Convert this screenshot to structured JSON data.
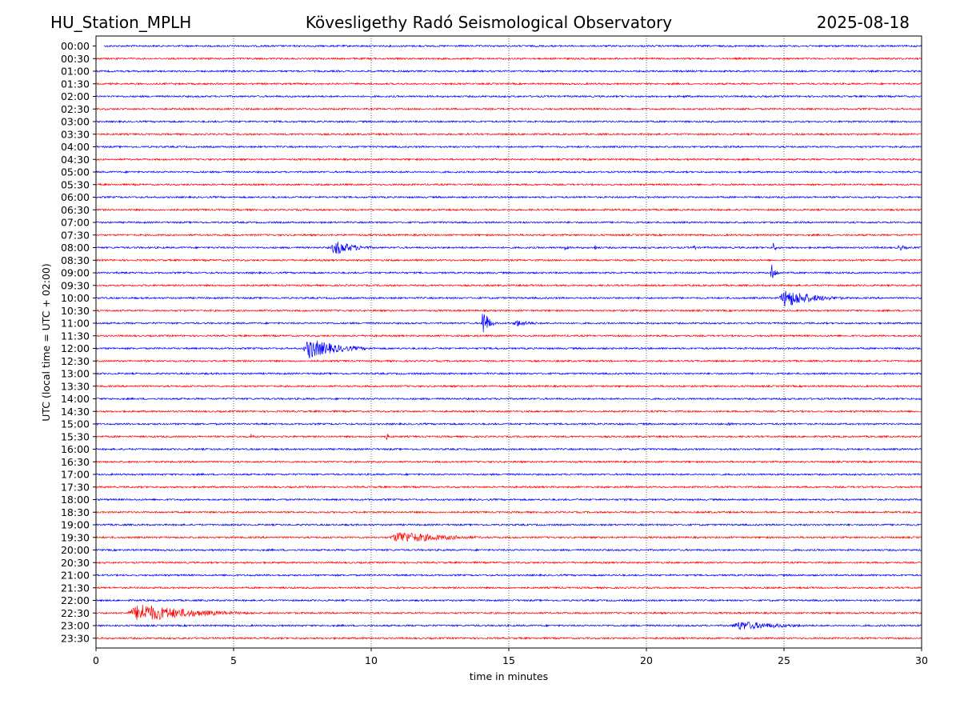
{
  "header": {
    "station": "HU_Station_MPLH",
    "observatory": "Kövesligethy Radó Seismological Observatory",
    "date": "2025-08-18"
  },
  "chart_data": {
    "type": "line",
    "title": "Kövesligethy Radó Seismological Observatory",
    "xlabel": "time in minutes",
    "ylabel": "UTC (local time = UTC + 02:00)",
    "xlim": [
      0,
      30
    ],
    "x_ticks": [
      "0",
      "5",
      "10",
      "15",
      "20",
      "25",
      "30"
    ],
    "x_tick_values": [
      0,
      5,
      10,
      15,
      20,
      25,
      30
    ],
    "grid": "vertical dotted lines at x ticks",
    "trace_colors": [
      "#0000ff",
      "#ff0000"
    ],
    "row_labels": [
      "00:00",
      "00:30",
      "01:00",
      "01:30",
      "02:00",
      "02:30",
      "03:00",
      "03:30",
      "04:00",
      "04:30",
      "05:00",
      "05:30",
      "06:00",
      "06:30",
      "07:00",
      "07:30",
      "08:00",
      "08:30",
      "09:00",
      "09:30",
      "10:00",
      "10:30",
      "11:00",
      "11:30",
      "12:00",
      "12:30",
      "13:00",
      "13:30",
      "14:00",
      "14:30",
      "15:00",
      "15:30",
      "16:00",
      "16:30",
      "17:00",
      "17:30",
      "18:00",
      "18:30",
      "19:00",
      "19:30",
      "20:00",
      "20:30",
      "21:00",
      "21:30",
      "22:00",
      "22:30",
      "23:00",
      "23:30"
    ],
    "events": [
      {
        "row": "02:00",
        "start": 21.3,
        "duration": 0.9,
        "amplitude": 0.35
      },
      {
        "row": "03:00",
        "start": 4.6,
        "duration": 0.8,
        "amplitude": 0.15
      },
      {
        "row": "03:30",
        "start": 12.9,
        "duration": 0.3,
        "amplitude": 0.2
      },
      {
        "row": "08:00",
        "start": 8.5,
        "duration": 2.3,
        "amplitude": 1.6
      },
      {
        "row": "08:00",
        "start": 17.0,
        "duration": 0.4,
        "amplitude": 0.8
      },
      {
        "row": "08:00",
        "start": 18.1,
        "duration": 0.3,
        "amplitude": 0.75
      },
      {
        "row": "08:00",
        "start": 21.7,
        "duration": 0.3,
        "amplitude": 0.75
      },
      {
        "row": "08:00",
        "start": 24.6,
        "duration": 0.2,
        "amplitude": 1.8
      },
      {
        "row": "08:00",
        "start": 29.1,
        "duration": 0.9,
        "amplitude": 0.7
      },
      {
        "row": "09:00",
        "start": 24.5,
        "duration": 0.5,
        "amplitude": 2.0
      },
      {
        "row": "10:00",
        "start": 24.8,
        "duration": 3.2,
        "amplitude": 2.0
      },
      {
        "row": "11:00",
        "start": 14.0,
        "duration": 0.6,
        "amplitude": 3.8
      },
      {
        "row": "11:00",
        "start": 15.1,
        "duration": 2.1,
        "amplitude": 0.75
      },
      {
        "row": "12:00",
        "start": 5.0,
        "duration": 0.9,
        "amplitude": 0.18
      },
      {
        "row": "12:00",
        "start": 7.5,
        "duration": 3.2,
        "amplitude": 2.2
      },
      {
        "row": "12:00",
        "start": 14.3,
        "duration": 1.5,
        "amplitude": 0.3
      },
      {
        "row": "15:00",
        "start": 22.9,
        "duration": 0.6,
        "amplitude": 0.55
      },
      {
        "row": "15:30",
        "start": 5.6,
        "duration": 0.4,
        "amplitude": 0.75
      },
      {
        "row": "15:30",
        "start": 10.5,
        "duration": 0.4,
        "amplitude": 0.9
      },
      {
        "row": "17:00",
        "start": 28.3,
        "duration": 1.0,
        "amplitude": 0.15
      },
      {
        "row": "19:30",
        "start": 10.6,
        "duration": 5.4,
        "amplitude": 1.3
      },
      {
        "row": "20:30",
        "start": 26.5,
        "duration": 0.5,
        "amplitude": 0.2
      },
      {
        "row": "22:30",
        "start": 1.1,
        "duration": 6.0,
        "amplitude": 2.0
      },
      {
        "row": "23:00",
        "start": 23.0,
        "duration": 5.0,
        "amplitude": 1.0
      }
    ]
  }
}
